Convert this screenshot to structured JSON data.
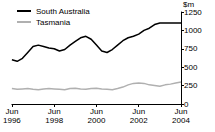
{
  "chart_data": {
    "type": "line",
    "y_label": "$m",
    "categories": [
      "Jun 1996",
      null,
      null,
      null,
      null,
      null,
      null,
      null,
      "Jun 1998",
      null,
      null,
      null,
      null,
      null,
      null,
      null,
      "Jun 2000",
      null,
      null,
      null,
      null,
      null,
      null,
      null,
      "Jun 2002",
      null,
      null,
      null,
      null,
      null,
      null,
      null,
      "Jun 2004"
    ],
    "series": [
      {
        "name": "South Australia",
        "color": "#000000",
        "values": [
          600,
          580,
          620,
          700,
          780,
          800,
          780,
          760,
          750,
          720,
          740,
          800,
          850,
          900,
          920,
          880,
          800,
          720,
          700,
          740,
          800,
          860,
          900,
          920,
          950,
          1000,
          1030,
          1080,
          1100,
          1100,
          1100,
          1100,
          1100
        ]
      },
      {
        "name": "Tasmania",
        "color": "#b0b0b0",
        "values": [
          210,
          200,
          205,
          210,
          200,
          195,
          205,
          210,
          205,
          200,
          195,
          210,
          215,
          205,
          200,
          210,
          215,
          205,
          200,
          195,
          210,
          230,
          260,
          280,
          285,
          280,
          260,
          250,
          240,
          260,
          270,
          285,
          300
        ]
      }
    ],
    "ylim": [
      0,
      1250
    ],
    "yticks": [
      0,
      250,
      500,
      750,
      1000,
      1250
    ],
    "grid": false,
    "legend": "top-left"
  }
}
